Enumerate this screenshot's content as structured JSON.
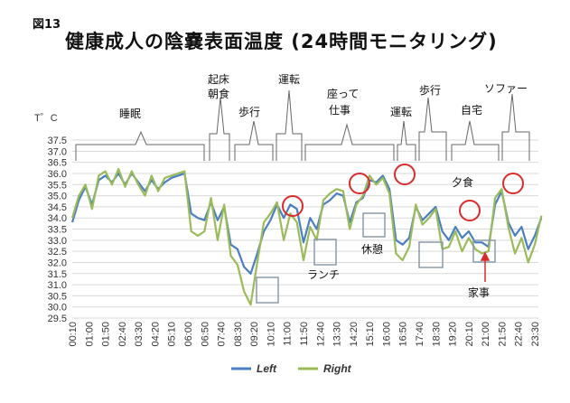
{
  "figure_label": "図13",
  "title": "健康成人の陰嚢表面温度 (24時間モニタリング)",
  "chart_data": {
    "type": "line",
    "ylabel": "T゜C",
    "ylim": [
      29.5,
      37.5
    ],
    "yticks": [
      "37.5",
      "37.0",
      "36.5",
      "36.0",
      "35.5",
      "35.0",
      "34.5",
      "34.0",
      "33.5",
      "33.0",
      "32.5",
      "32.0",
      "31.5",
      "31.0",
      "30.5",
      "30.0",
      "29.5"
    ],
    "categories": [
      "00:10",
      "01:00",
      "01:50",
      "02:40",
      "03:30",
      "04:20",
      "05:10",
      "06:00",
      "06:50",
      "07:40",
      "08:30",
      "09:20",
      "10:10",
      "11:00",
      "11:50",
      "12:40",
      "13:30",
      "14:20",
      "15:10",
      "16:00",
      "16:50",
      "17:40",
      "18:30",
      "19:20",
      "20:10",
      "21:00",
      "21:50",
      "22:40",
      "23:30"
    ],
    "grid": true,
    "legend_position": "bottom",
    "series": [
      {
        "name": "Left",
        "color": "#4a7fc1",
        "x": [
          0,
          0.4,
          0.8,
          1.2,
          1.6,
          2.0,
          2.4,
          2.8,
          3.2,
          3.6,
          4.0,
          4.4,
          4.8,
          5.2,
          5.6,
          6.0,
          6.4,
          6.8,
          7.2,
          7.6,
          8.0,
          8.4,
          8.8,
          9.2,
          9.6,
          10.0,
          10.4,
          10.8,
          11.2,
          11.6,
          12.0,
          12.4,
          12.8,
          13.2,
          13.6,
          14.0,
          14.4,
          14.8,
          15.2,
          15.6,
          16.0,
          16.4,
          16.8,
          17.2,
          17.6,
          18.0,
          18.4,
          18.8,
          19.2,
          19.6,
          20.0,
          20.4,
          20.8,
          21.2,
          21.6,
          22.0,
          22.4,
          22.8,
          23.2,
          23.6,
          24.0,
          24.4,
          24.8,
          25.2,
          25.6,
          26.0,
          26.4,
          26.8,
          27.2,
          27.6,
          28.0,
          28.4
        ],
        "y": [
          33.8,
          34.8,
          35.4,
          34.6,
          35.7,
          35.9,
          35.6,
          36.0,
          35.5,
          36.0,
          35.6,
          35.2,
          35.7,
          35.3,
          35.6,
          35.8,
          35.9,
          36.0,
          34.2,
          34.0,
          33.9,
          34.7,
          33.9,
          34.5,
          32.8,
          32.6,
          31.8,
          31.5,
          32.4,
          33.4,
          33.9,
          34.6,
          34.0,
          34.6,
          34.4,
          32.9,
          34.0,
          33.5,
          34.6,
          34.8,
          35.1,
          35.0,
          33.8,
          34.7,
          34.9,
          35.7,
          35.6,
          35.9,
          35.3,
          33.0,
          32.8,
          33.1,
          34.5,
          33.9,
          34.2,
          34.5,
          33.4,
          33.0,
          33.6,
          33.1,
          33.4,
          32.9,
          32.9,
          32.7,
          34.6,
          35.2,
          33.8,
          33.2,
          33.6,
          32.6,
          33.2,
          34.0
        ]
      },
      {
        "name": "Right",
        "color": "#9bbb59",
        "x": [
          0,
          0.4,
          0.8,
          1.2,
          1.6,
          2.0,
          2.4,
          2.8,
          3.2,
          3.6,
          4.0,
          4.4,
          4.8,
          5.2,
          5.6,
          6.0,
          6.4,
          6.8,
          7.2,
          7.6,
          8.0,
          8.4,
          8.8,
          9.2,
          9.6,
          10.0,
          10.4,
          10.8,
          11.2,
          11.6,
          12.0,
          12.4,
          12.8,
          13.2,
          13.6,
          14.0,
          14.4,
          14.8,
          15.2,
          15.6,
          16.0,
          16.4,
          16.8,
          17.2,
          17.6,
          18.0,
          18.4,
          18.8,
          19.2,
          19.6,
          20.0,
          20.4,
          20.8,
          21.2,
          21.6,
          22.0,
          22.4,
          22.8,
          23.2,
          23.6,
          24.0,
          24.4,
          24.8,
          25.2,
          25.6,
          26.0,
          26.4,
          26.8,
          27.2,
          27.6,
          28.0,
          28.4
        ],
        "y": [
          34.0,
          35.0,
          35.5,
          34.4,
          35.9,
          36.1,
          35.5,
          36.2,
          35.4,
          36.1,
          35.5,
          35.0,
          35.9,
          35.2,
          35.8,
          35.9,
          36.0,
          36.1,
          33.4,
          33.2,
          33.4,
          34.9,
          33.0,
          34.6,
          32.3,
          31.9,
          30.7,
          30.1,
          32.0,
          33.8,
          34.2,
          34.7,
          33.0,
          34.2,
          33.8,
          32.1,
          33.6,
          33.0,
          34.8,
          35.1,
          35.3,
          35.2,
          33.5,
          34.6,
          35.0,
          35.9,
          35.5,
          35.8,
          35.1,
          32.4,
          32.1,
          32.7,
          34.6,
          33.7,
          34.0,
          34.4,
          32.6,
          32.7,
          33.4,
          32.5,
          33.1,
          32.6,
          32.4,
          32.5,
          34.9,
          35.3,
          33.6,
          32.4,
          33.1,
          32.0,
          32.8,
          34.1
        ]
      }
    ],
    "activities": [
      "睡眠",
      "起床",
      "朝食",
      "歩行",
      "運転",
      "座って",
      "仕事",
      "運転",
      "歩行",
      "自宅",
      "ソファー"
    ],
    "annotations": [
      "ランチ",
      "休憩",
      "夕食",
      "家事"
    ]
  }
}
